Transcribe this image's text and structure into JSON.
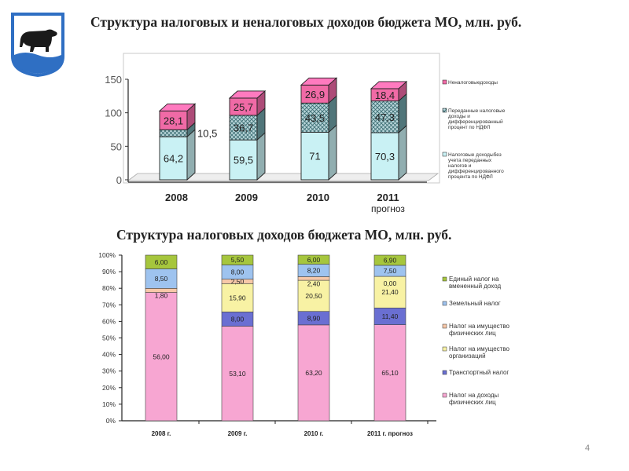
{
  "page": {
    "title1": "Структура налоговых и неналоговых доходов бюджета МО, млн. руб.",
    "title2": "Структура налоговых доходов бюджета МО, млн. руб.",
    "page_number": "4"
  },
  "emblem": {
    "icon": "bear-coat-of-arms-icon",
    "colors": {
      "shield": "#2f6fc3",
      "bear": "#1a1a1a",
      "field": "#ffffff"
    }
  },
  "chart_data": [
    {
      "type": "bar",
      "stacked": true,
      "style": "3d",
      "categories": [
        "2008",
        "2009",
        "2010",
        "2011"
      ],
      "category_notes": [
        "",
        "",
        "",
        "прогноз"
      ],
      "ylim": [
        0,
        150
      ],
      "yticks": [
        "0",
        "50",
        "100",
        "150"
      ],
      "grid": false,
      "legend_position": "right",
      "series": [
        {
          "name": "Налоговые доходы без учета переданных налогов и дифференцированного процента по НДФЛ",
          "values": [
            64.2,
            59.5,
            71,
            70.3
          ],
          "labels": [
            "64,2",
            "59,5",
            "71",
            "70,3"
          ],
          "color": "#c9f1f4"
        },
        {
          "name": "Переданные налоговые доходы и дифференцированный процент по НДФЛ",
          "values": [
            10.5,
            36.7,
            43.5,
            47.3
          ],
          "labels": [
            "10,5",
            "36,7",
            "43,5",
            "47,3"
          ],
          "color": "#6fa2a8",
          "pattern": "crosshatch"
        },
        {
          "name": "Неналоговые доходы",
          "values": [
            28.1,
            25.7,
            26.9,
            18.4
          ],
          "labels": [
            "28,1",
            "25,7",
            "26,9",
            "18,4"
          ],
          "color": "#f06aa6"
        }
      ]
    },
    {
      "type": "bar",
      "stacked": true,
      "percent": true,
      "categories": [
        "2008 г.",
        "2009 г.",
        "2010 г.",
        "2011 г. прогноз"
      ],
      "yticks": [
        "0%",
        "10%",
        "20%",
        "30%",
        "40%",
        "50%",
        "60%",
        "70%",
        "80%",
        "90%",
        "100%"
      ],
      "grid": false,
      "legend_position": "right",
      "series": [
        {
          "name": "Налог на доходы физических лиц",
          "values": [
            56.0,
            53.1,
            63.2,
            65.1
          ],
          "labels": [
            "56,00",
            "53,10",
            "63,20",
            "65,10"
          ],
          "color": "#f7a6d2"
        },
        {
          "name": "Транспортный налог",
          "values": [
            0,
            8.0,
            8.9,
            11.4
          ],
          "labels": [
            "",
            "8,00",
            "8,90",
            "11,40"
          ],
          "color": "#6a6fd2"
        },
        {
          "name": "Налог на имущество организаций",
          "values": [
            0,
            15.9,
            20.5,
            21.4
          ],
          "labels": [
            "",
            "15,90",
            "20,50",
            "21,40"
          ],
          "color": "#f8f2a4"
        },
        {
          "name": "Налог на имущество физических лиц",
          "values": [
            1.8,
            2.5,
            2.4,
            0.0
          ],
          "labels": [
            "1,80",
            "2,50",
            "2,40",
            "0,00"
          ],
          "color": "#f7c8a8"
        },
        {
          "name": "Земельный налог",
          "values": [
            8.5,
            8.0,
            8.2,
            7.5
          ],
          "labels": [
            "8,50",
            "8,00",
            "8,20",
            "7,50"
          ],
          "color": "#9ec3ef"
        },
        {
          "name": "Единый налог на вмененный доход",
          "values": [
            6.0,
            5.5,
            6.0,
            6.9
          ],
          "labels": [
            "6,00",
            "5,50",
            "6,00",
            "6,90"
          ],
          "color": "#a6c63d"
        }
      ]
    }
  ]
}
